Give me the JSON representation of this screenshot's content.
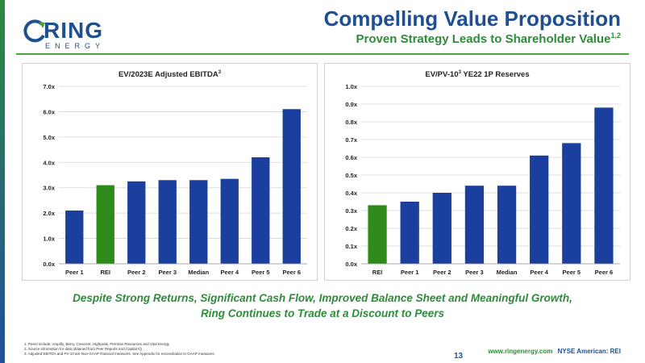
{
  "logo": {
    "word": "RING",
    "sub": "ENERGY"
  },
  "header": {
    "title": "Compelling Value Proposition",
    "subtitle": "Proven Strategy Leads to Shareholder Value",
    "subtitle_sup": "1,2"
  },
  "colors": {
    "blue": "#1a3f9e",
    "green": "#2e8b1a",
    "title_blue": "#1d4f91",
    "accent_green": "#2e8b3a"
  },
  "chart_data": [
    {
      "type": "bar",
      "title": "EV/2023E Adjusted EBITDA",
      "title_sup": "3",
      "categories": [
        "Peer 1",
        "REI",
        "Peer 2",
        "Peer 3",
        "Median",
        "Peer 4",
        "Peer 5",
        "Peer 6"
      ],
      "values": [
        2.1,
        3.1,
        3.25,
        3.3,
        3.3,
        3.35,
        4.2,
        6.1
      ],
      "highlight": "REI",
      "ylim": [
        0,
        7
      ],
      "yticks": [
        "0.0x",
        "1.0x",
        "2.0x",
        "3.0x",
        "4.0x",
        "5.0x",
        "6.0x",
        "7.0x"
      ],
      "grid": true
    },
    {
      "type": "bar",
      "title": "EV/PV-10",
      "title_sup": "3",
      "title_rest": " YE22 1P Reserves",
      "categories": [
        "REI",
        "Peer 1",
        "Peer 2",
        "Peer 3",
        "Median",
        "Peer 4",
        "Peer 5",
        "Peer 6"
      ],
      "values": [
        0.33,
        0.35,
        0.4,
        0.44,
        0.44,
        0.61,
        0.68,
        0.88
      ],
      "highlight": "REI",
      "ylim": [
        0,
        1.0
      ],
      "yticks": [
        "0.0x",
        "0.1x",
        "0.2x",
        "0.3x",
        "0.4x",
        "0.5x",
        "0.6x",
        "0.7x",
        "0.8x",
        "0.9x",
        "1.0x"
      ],
      "grid": true
    }
  ],
  "tagline": {
    "line1": "Despite Strong Returns, Significant Cash Flow, Improved Balance Sheet and Meaningful Growth,",
    "line2": "Ring Continues to Trade at a Discount to Peers"
  },
  "footnotes": [
    "1.   Peers include: Amplify, Berry, Crescent, Highpeak, Permian Resources and Vital Energy",
    "2.   Source information for data obtained from Peer Reports and Capital IQ",
    "3.   Adjusted EBITDA and PV-10 are Non-GAAP financial measures. See Appendix for reconciliation to GAAP measures"
  ],
  "footer": {
    "page": "13",
    "url": "www.ringenergy.com",
    "exchange": "NYSE American: REI"
  }
}
